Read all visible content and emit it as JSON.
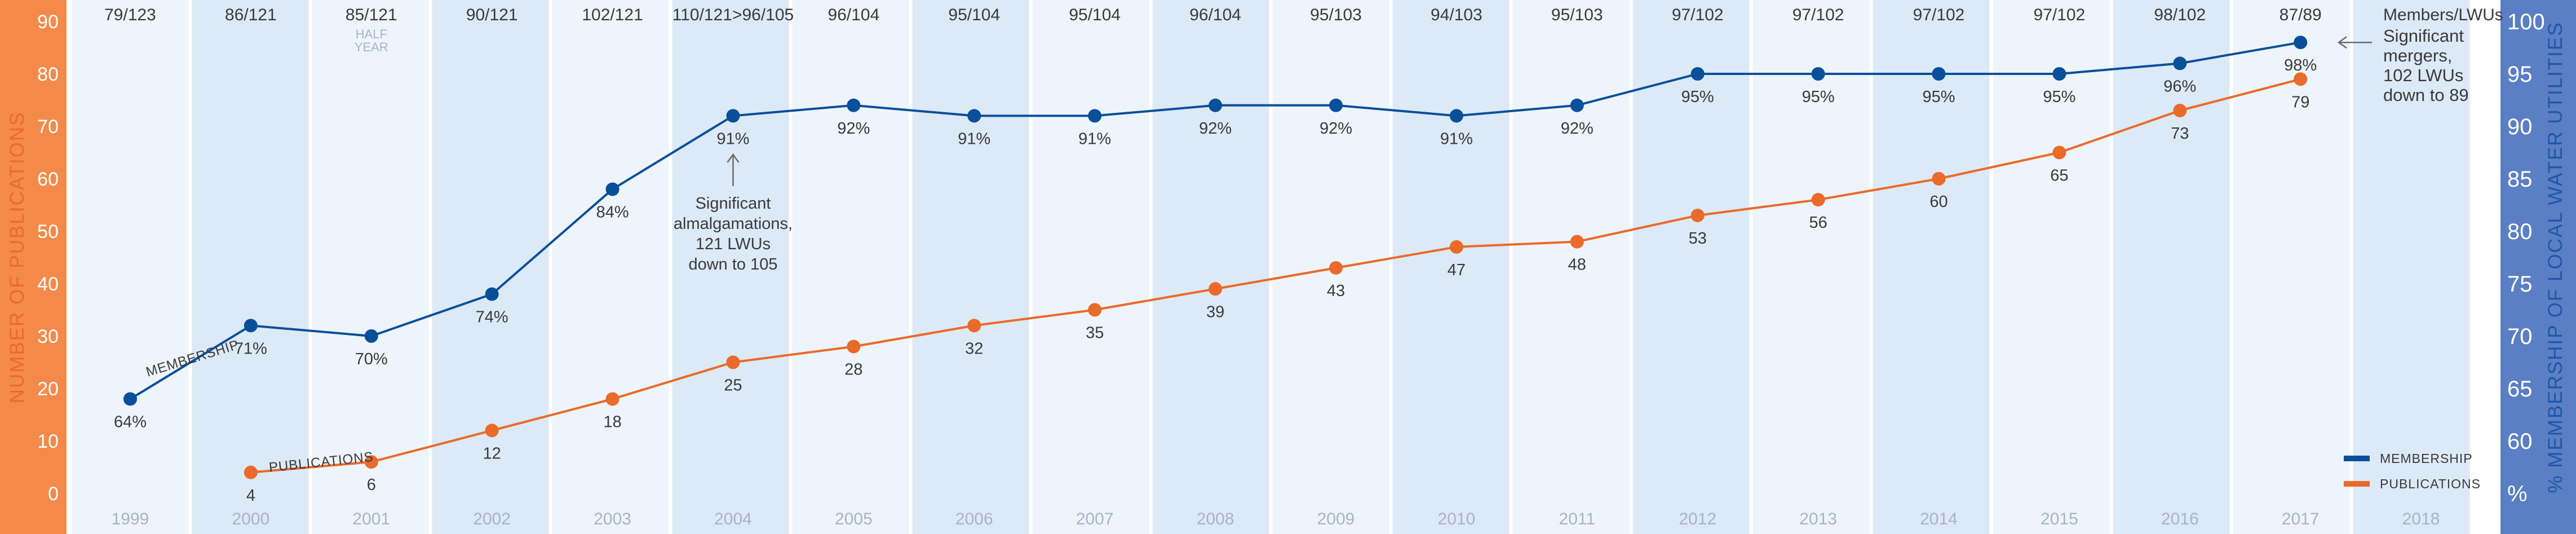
{
  "chart_data": {
    "type": "line",
    "title": "",
    "x": [
      "1999",
      "2000",
      "2001",
      "2002",
      "2003",
      "2004",
      "2005",
      "2006",
      "2007",
      "2008",
      "2009",
      "2010",
      "2011",
      "2012",
      "2013",
      "2014",
      "2015",
      "2016",
      "2017",
      "2018"
    ],
    "ratio_header": "Members/LWUs",
    "ratios": [
      "79/123",
      "86/121",
      "85/121",
      "90/121",
      "102/121",
      "110/121>96/105",
      "96/104",
      "95/104",
      "95/104",
      "96/104",
      "95/103",
      "94/103",
      "95/103",
      "97/102",
      "97/102",
      "97/102",
      "97/102",
      "98/102",
      "87/89",
      ""
    ],
    "half_year_note": {
      "year": "2001",
      "text_line1": "HALF",
      "text_line2": "YEAR"
    },
    "left_axis": {
      "label": "NUMBER OF PUBLICATIONS",
      "ticks": [
        "0",
        "10",
        "20",
        "30",
        "40",
        "50",
        "60",
        "70",
        "80",
        "90"
      ],
      "range": [
        0,
        90
      ],
      "color": "#f48a4a"
    },
    "right_axis": {
      "label": "% MEMBERSHIP OF LOCAL WATER UTILITIES",
      "ticks": [
        "%",
        "60",
        "65",
        "70",
        "75",
        "80",
        "85",
        "90",
        "95",
        "100"
      ],
      "range": [
        55,
        100
      ],
      "unit_tick": "%",
      "color": "#5b7fc4"
    },
    "series": [
      {
        "name": "MEMBERSHIP",
        "axis": "right",
        "color": "#0a4f9a",
        "values": [
          64,
          71,
          70,
          74,
          84,
          91,
          92,
          91,
          91,
          92,
          92,
          91,
          92,
          95,
          95,
          95,
          95,
          96,
          98,
          null
        ],
        "labels": [
          "64%",
          "71%",
          "70%",
          "74%",
          "84%",
          "91%",
          "92%",
          "91%",
          "91%",
          "92%",
          "92%",
          "91%",
          "92%",
          "95%",
          "95%",
          "95%",
          "95%",
          "96%",
          "98%",
          ""
        ]
      },
      {
        "name": "PUBLICATIONS",
        "axis": "left",
        "color": "#ea6a2a",
        "values": [
          null,
          4,
          6,
          12,
          18,
          25,
          28,
          32,
          35,
          39,
          43,
          47,
          48,
          53,
          56,
          60,
          65,
          73,
          79,
          null
        ],
        "labels": [
          "",
          "4",
          "6",
          "12",
          "18",
          "25",
          "28",
          "32",
          "35",
          "39",
          "43",
          "47",
          "48",
          "53",
          "56",
          "60",
          "65",
          "73",
          "79",
          ""
        ]
      }
    ],
    "series_tags": {
      "membership": "MEMBERSHIP",
      "publications": "PUBLICATIONS"
    },
    "annotations": [
      {
        "year": "2004",
        "lines": [
          "Significant",
          "almalgamations,",
          "121 LWUs",
          "down to 105"
        ]
      },
      {
        "year": "2017",
        "lines": [
          "Significant",
          "mergers,",
          "102 LWUs",
          "down to 89"
        ]
      }
    ],
    "legend": {
      "placement": "bottom-right",
      "items": [
        "MEMBERSHIP",
        "PUBLICATIONS"
      ]
    },
    "grid": false
  }
}
